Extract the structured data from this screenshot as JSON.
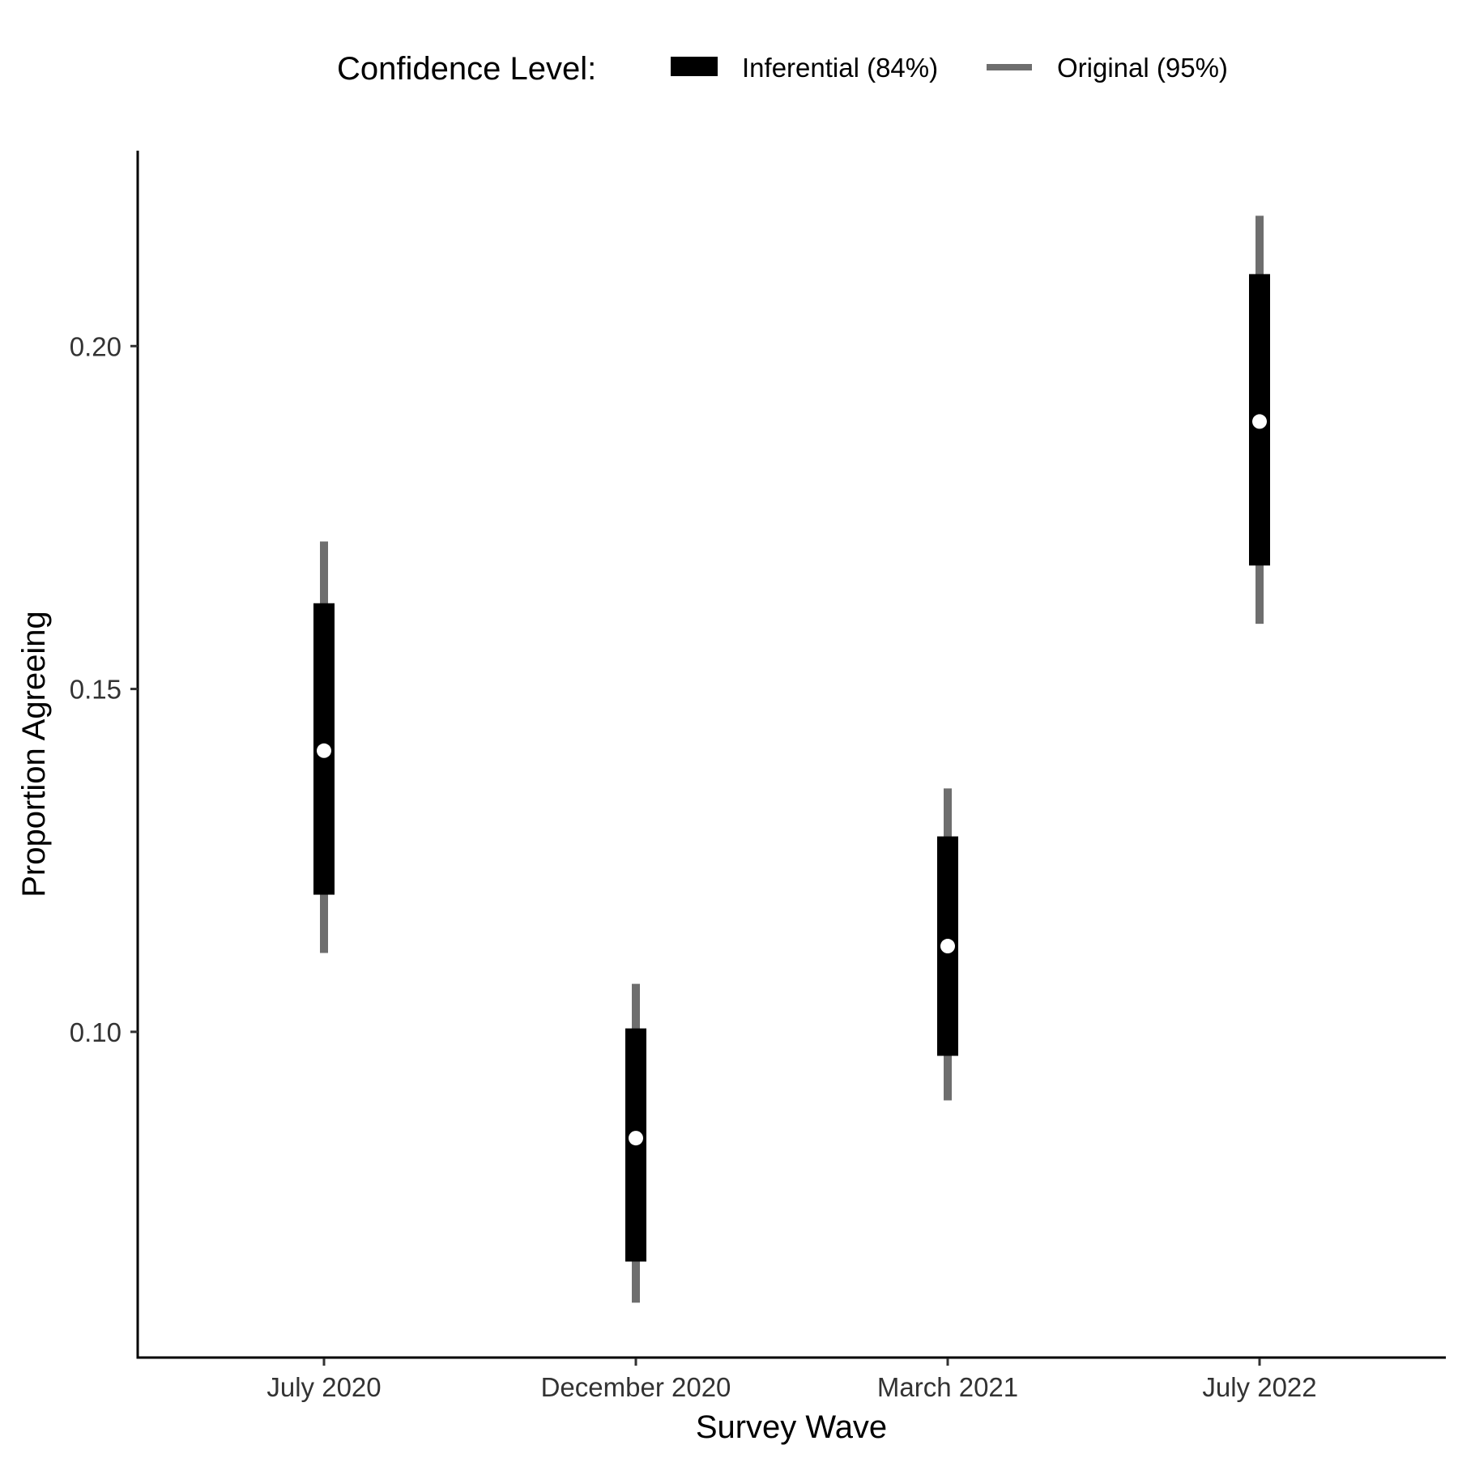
{
  "chart_data": {
    "type": "errorbar",
    "xlabel": "Survey Wave",
    "ylabel": "Proportion Agreeing",
    "legend": {
      "title": "Confidence Level:",
      "position": "top",
      "entries": [
        {
          "label": "Inferential (84%)",
          "color": "#000000",
          "style": "thick"
        },
        {
          "label": "Original (95%)",
          "color": "#6e6e6e",
          "style": "thin"
        }
      ]
    },
    "categories": [
      "July 2020",
      "December 2020",
      "March 2021",
      "July 2022"
    ],
    "yticks": [
      0.1,
      0.15,
      0.2
    ],
    "ytick_labels": [
      "0.10",
      "0.15",
      "0.20"
    ],
    "ylim": [
      0.0525,
      0.2285
    ],
    "grid": false,
    "colors": {
      "inferential": "#000000",
      "original": "#6e6e6e",
      "point": "#ffffff",
      "axis": "#000000"
    },
    "series": [
      {
        "name": "Point estimate",
        "values": [
          0.141,
          0.0845,
          0.1125,
          0.189
        ]
      },
      {
        "name": "Inferential (84%)",
        "lower": [
          0.12,
          0.0665,
          0.0965,
          0.168
        ],
        "upper": [
          0.1625,
          0.1005,
          0.1285,
          0.2105
        ]
      },
      {
        "name": "Original (95%)",
        "lower": [
          0.1115,
          0.0605,
          0.09,
          0.1595
        ],
        "upper": [
          0.1715,
          0.107,
          0.1355,
          0.219
        ]
      }
    ]
  }
}
